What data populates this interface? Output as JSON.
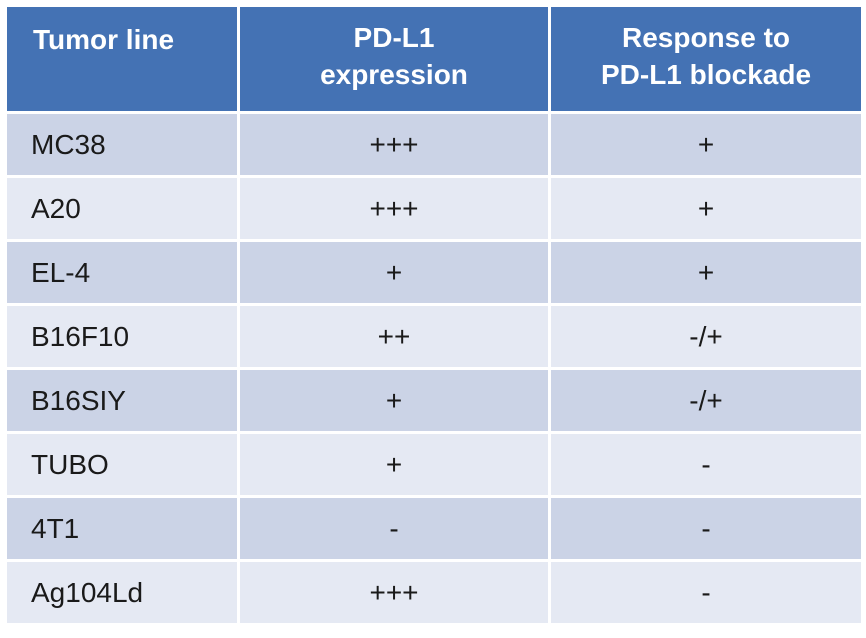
{
  "header": {
    "col1": "Tumor line",
    "col2_line1": "PD-L1",
    "col2_line2": "expression",
    "col3_line1": "Response to",
    "col3_line2": "PD-L1 blockade"
  },
  "rows": [
    {
      "tumor": "MC38",
      "expression": "+++",
      "response": "+"
    },
    {
      "tumor": "A20",
      "expression": "+++",
      "response": "+"
    },
    {
      "tumor": "EL-4",
      "expression": "+",
      "response": "+"
    },
    {
      "tumor": "B16F10",
      "expression": "++",
      "response": "-/+"
    },
    {
      "tumor": "B16SIY",
      "expression": "+",
      "response": "-/+"
    },
    {
      "tumor": "TUBO",
      "expression": "+",
      "response": "-"
    },
    {
      "tumor": "4T1",
      "expression": "-",
      "response": "-"
    },
    {
      "tumor": "Ag104Ld",
      "expression": "+++",
      "response": "-"
    }
  ],
  "colors": {
    "header_bg": "#4472b4",
    "row_dark": "#cbd3e6",
    "row_light": "#e5e9f3"
  }
}
